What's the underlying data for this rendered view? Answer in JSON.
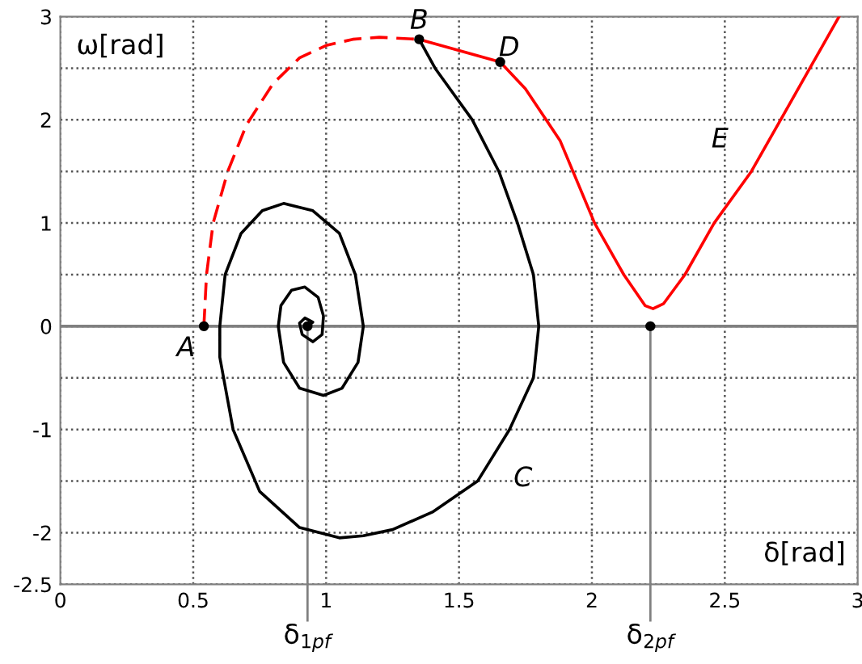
{
  "chart_data": {
    "type": "line",
    "xlabel": "δ[rad]",
    "ylabel": "ω[rad]",
    "xlim": [
      0,
      3
    ],
    "ylim": [
      -2.5,
      3
    ],
    "xticks": [
      0,
      0.5,
      1,
      1.5,
      2,
      2.5,
      3
    ],
    "yticks": [
      {
        "value": -2.5,
        "label": "-2.5"
      },
      {
        "value": -2,
        "label": "-2"
      },
      {
        "value": -1.5,
        "label": null
      },
      {
        "value": -1,
        "label": "-1"
      },
      {
        "value": -0.5,
        "label": null
      },
      0,
      {
        "value": 0.5,
        "label": null
      },
      1,
      {
        "value": 1.5,
        "label": null
      },
      2,
      {
        "value": 2.5,
        "label": null
      },
      3
    ],
    "grid": true,
    "series": [
      {
        "color": "#ff0000",
        "line_style": "dashed",
        "x": [
          0.54,
          0.55,
          0.575,
          0.63,
          0.7,
          0.8,
          0.9,
          1.0,
          1.1,
          1.2,
          1.35
        ],
        "values": [
          0,
          0.5,
          1.0,
          1.5,
          1.95,
          2.35,
          2.6,
          2.72,
          2.78,
          2.8,
          2.78
        ]
      },
      {
        "color": "#ff0000",
        "line_style": "solid",
        "x": [
          1.35,
          1.655,
          1.75,
          1.88,
          2.01,
          2.12,
          2.2,
          2.23,
          2.27,
          2.35,
          2.46,
          2.6,
          2.71,
          2.82,
          2.93
        ],
        "values": [
          2.78,
          2.56,
          2.3,
          1.8,
          1.0,
          0.5,
          0.2,
          0.17,
          0.22,
          0.5,
          1.0,
          1.5,
          2.0,
          2.5,
          3.0
        ]
      },
      {
        "color": "#000000",
        "line_style": "solid",
        "x": [
          1.35,
          1.41,
          1.55,
          1.65,
          1.72,
          1.78,
          1.8,
          1.78,
          1.69,
          1.57,
          1.4,
          1.25,
          1.14,
          1.05,
          0.9,
          0.75,
          0.65,
          0.6,
          0.6,
          0.62,
          0.68,
          0.76,
          0.84,
          0.95,
          1.05,
          1.11,
          1.14,
          1.12,
          1.06,
          0.99,
          0.9,
          0.84,
          0.82,
          0.83,
          0.87,
          0.92,
          0.97,
          0.99,
          0.985,
          0.95,
          0.91,
          0.9,
          0.92,
          0.95,
          0.93
        ],
        "values": [
          2.78,
          2.5,
          2.0,
          1.5,
          1.0,
          0.5,
          0,
          -0.5,
          -1.0,
          -1.5,
          -1.8,
          -1.97,
          -2.03,
          -2.05,
          -1.95,
          -1.6,
          -1.0,
          -0.3,
          0,
          0.5,
          0.9,
          1.12,
          1.19,
          1.12,
          0.9,
          0.5,
          0,
          -0.35,
          -0.6,
          -0.67,
          -0.6,
          -0.35,
          0,
          0.2,
          0.35,
          0.38,
          0.28,
          0.1,
          -0.08,
          -0.15,
          -0.08,
          0.03,
          0.08,
          0.04,
          0
        ]
      },
      {
        "type": "scatter",
        "color": "#000000",
        "marker": "circle",
        "x": [
          0.54,
          1.35,
          1.655,
          0.93,
          2.22
        ],
        "values": [
          0,
          2.78,
          2.56,
          0,
          0
        ]
      }
    ],
    "ref_lines": [
      {
        "axis": "y",
        "value": 0,
        "color": "#808080"
      },
      {
        "axis": "x",
        "value": 0.93,
        "label": "δ$_{1pf}$",
        "color": "#808080"
      },
      {
        "axis": "x",
        "value": 2.22,
        "label": "δ$_{2pf}$",
        "color": "#808080"
      }
    ],
    "annotations": [
      {
        "text": "A",
        "x": 0.54,
        "y": 0
      },
      {
        "text": "B",
        "x": 1.35,
        "y": 2.78
      },
      {
        "text": "C",
        "x": 1.69,
        "y": -1.0
      },
      {
        "text": "D",
        "x": 1.655,
        "y": 2.56
      },
      {
        "text": "E",
        "x": 2.6,
        "y": 1.5
      }
    ]
  }
}
